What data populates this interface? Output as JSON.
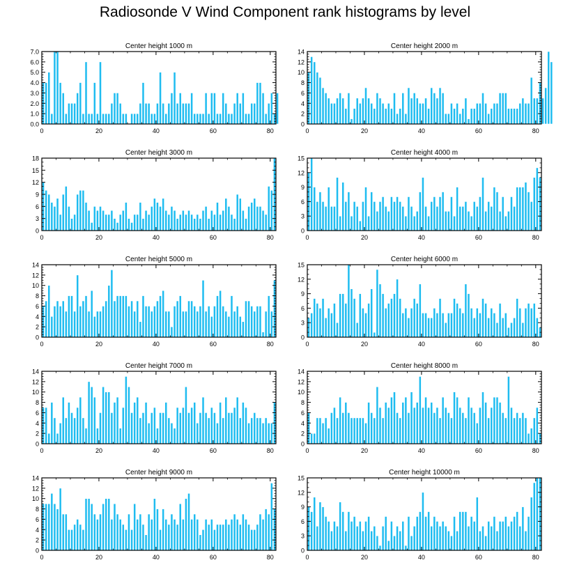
{
  "title": "Radiosonde V Wind Component rank histograms by level",
  "colors": {
    "bar": "#1ebcf0",
    "bar_edge": "#ffffff",
    "axis": "#000000"
  },
  "chart_data": [
    {
      "type": "bar",
      "title": "Center height 1000 m",
      "xlabel": "",
      "ylabel": "",
      "xlim": [
        0,
        82
      ],
      "ylim": [
        0,
        7
      ],
      "xticks": [
        0,
        20,
        40,
        60,
        80
      ],
      "yticks": [
        0.0,
        1.0,
        2.0,
        3.0,
        4.0,
        5.0,
        6.0,
        7.0
      ],
      "ytick_labels": [
        "0.0",
        "1.0",
        "2.0",
        "3.0",
        "4.0",
        "5.0",
        "6.0",
        "7.0"
      ],
      "values": [
        4,
        4,
        5,
        1,
        7,
        7,
        4,
        3,
        1,
        2,
        2,
        2,
        3,
        4,
        1,
        6,
        1,
        1,
        4,
        1,
        6,
        1,
        1,
        1,
        2,
        3,
        3,
        2,
        1,
        1,
        0,
        1,
        1,
        1,
        2,
        4,
        2,
        2,
        1,
        1,
        2,
        5,
        2,
        1,
        2,
        3,
        5,
        2,
        3,
        2,
        2,
        2,
        3,
        1,
        1,
        1,
        1,
        3,
        1,
        3,
        3,
        1,
        1,
        3,
        2,
        1,
        1,
        2,
        3,
        2,
        3,
        1,
        1,
        2,
        2,
        4,
        4,
        3,
        1,
        2,
        3,
        1,
        3
      ]
    },
    {
      "type": "bar",
      "title": "Center height 2000 m",
      "xlabel": "",
      "ylabel": "",
      "xlim": [
        0,
        82
      ],
      "ylim": [
        0,
        14
      ],
      "xticks": [
        0,
        20,
        40,
        60,
        80
      ],
      "yticks": [
        0,
        2,
        4,
        6,
        8,
        10,
        12,
        14
      ],
      "ytick_labels": [
        "0",
        "2",
        "4",
        "6",
        "8",
        "10",
        "12",
        "14"
      ],
      "values": [
        10,
        13,
        12,
        10,
        9,
        7,
        6,
        5,
        4,
        4,
        5,
        6,
        5,
        3,
        6,
        1,
        3,
        5,
        4,
        5,
        7,
        5,
        4,
        3,
        6,
        5,
        4,
        3,
        4,
        3,
        6,
        2,
        3,
        6,
        2,
        7,
        5,
        6,
        5,
        4,
        4,
        5,
        3,
        7,
        6,
        5,
        7,
        6,
        2,
        2,
        4,
        3,
        4,
        2,
        3,
        5,
        1,
        3,
        3,
        4,
        4,
        6,
        4,
        2,
        3,
        4,
        4,
        6,
        6,
        6,
        3,
        3,
        3,
        3,
        4,
        5,
        4,
        4,
        9,
        5,
        5,
        8,
        5,
        7,
        14,
        12
      ]
    },
    {
      "type": "bar",
      "title": "Center height 3000 m",
      "xlabel": "",
      "ylabel": "",
      "xlim": [
        0,
        82
      ],
      "ylim": [
        0,
        18
      ],
      "xticks": [
        0,
        20,
        40,
        60,
        80
      ],
      "yticks": [
        0,
        3,
        6,
        9,
        12,
        15,
        18
      ],
      "ytick_labels": [
        "0",
        "3",
        "6",
        "9",
        "12",
        "15",
        "18"
      ],
      "values": [
        12,
        10,
        9,
        7,
        6,
        8,
        4,
        9,
        11,
        6,
        3,
        4,
        9,
        10,
        10,
        7,
        5,
        2,
        6,
        5,
        6,
        5,
        4,
        4,
        5,
        3,
        2,
        4,
        5,
        7,
        3,
        2,
        4,
        4,
        7,
        3,
        5,
        4,
        6,
        8,
        7,
        6,
        8,
        5,
        4,
        6,
        5,
        3,
        4,
        5,
        4,
        5,
        4,
        3,
        4,
        3,
        5,
        6,
        3,
        5,
        4,
        7,
        4,
        5,
        8,
        6,
        4,
        3,
        9,
        8,
        5,
        3,
        6,
        7,
        8,
        6,
        6,
        5,
        4,
        11,
        10,
        18
      ]
    },
    {
      "type": "bar",
      "title": "Center height 4000 m",
      "xlabel": "",
      "ylabel": "",
      "xlim": [
        0,
        82
      ],
      "ylim": [
        0,
        15
      ],
      "xticks": [
        0,
        20,
        40,
        60,
        80
      ],
      "yticks": [
        0,
        3,
        6,
        9,
        12,
        15
      ],
      "ytick_labels": [
        "0",
        "3",
        "6",
        "9",
        "12",
        "15"
      ],
      "values": [
        12,
        15,
        9,
        6,
        8,
        6,
        5,
        9,
        5,
        5,
        11,
        3,
        10,
        6,
        8,
        3,
        6,
        5,
        2,
        6,
        9,
        3,
        8,
        6,
        4,
        6,
        7,
        5,
        4,
        7,
        6,
        7,
        6,
        5,
        3,
        7,
        5,
        3,
        4,
        8,
        11,
        5,
        3,
        6,
        7,
        5,
        7,
        8,
        4,
        4,
        7,
        3,
        9,
        5,
        5,
        6,
        4,
        3,
        6,
        5,
        7,
        11,
        4,
        6,
        5,
        9,
        8,
        4,
        7,
        3,
        4,
        7,
        5,
        9,
        9,
        9,
        10,
        8,
        6,
        11,
        13,
        11
      ]
    },
    {
      "type": "bar",
      "title": "Center height 5000 m",
      "xlabel": "",
      "ylabel": "",
      "xlim": [
        0,
        82
      ],
      "ylim": [
        0,
        14
      ],
      "xticks": [
        0,
        20,
        40,
        60,
        80
      ],
      "yticks": [
        0,
        2,
        4,
        6,
        8,
        10,
        12,
        14
      ],
      "ytick_labels": [
        "0",
        "2",
        "4",
        "6",
        "8",
        "10",
        "12",
        "14"
      ],
      "values": [
        6,
        7,
        10,
        4,
        6,
        7,
        6,
        7,
        5,
        8,
        8,
        5,
        12,
        6,
        7,
        8,
        5,
        9,
        4,
        5,
        5,
        6,
        7,
        10,
        13,
        7,
        8,
        8,
        8,
        8,
        6,
        7,
        5,
        7,
        3,
        8,
        6,
        6,
        5,
        6,
        7,
        8,
        9,
        5,
        5,
        2,
        6,
        7,
        8,
        5,
        5,
        7,
        7,
        6,
        5,
        6,
        11,
        5,
        6,
        4,
        6,
        8,
        9,
        6,
        5,
        4,
        8,
        5,
        6,
        4,
        3,
        7,
        7,
        6,
        5,
        6,
        6,
        1,
        5,
        8,
        5,
        11
      ]
    },
    {
      "type": "bar",
      "title": "Center height 6000 m",
      "xlabel": "",
      "ylabel": "",
      "xlim": [
        0,
        82
      ],
      "ylim": [
        0,
        15
      ],
      "xticks": [
        0,
        20,
        40,
        60,
        80
      ],
      "yticks": [
        0,
        3,
        6,
        9,
        12,
        15
      ],
      "ytick_labels": [
        "0",
        "3",
        "6",
        "9",
        "12",
        "15"
      ],
      "values": [
        4,
        5,
        8,
        7,
        6,
        8,
        4,
        6,
        5,
        7,
        3,
        9,
        9,
        7,
        15,
        10,
        8,
        3,
        9,
        6,
        5,
        7,
        10,
        1,
        14,
        11,
        9,
        6,
        7,
        8,
        9,
        12,
        8,
        5,
        6,
        4,
        6,
        8,
        7,
        11,
        5,
        5,
        4,
        4,
        6,
        5,
        8,
        5,
        3,
        5,
        5,
        8,
        7,
        6,
        5,
        11,
        9,
        6,
        4,
        6,
        5,
        8,
        7,
        4,
        6,
        5,
        3,
        7,
        4,
        5,
        2,
        3,
        4,
        8,
        6,
        3,
        6,
        7,
        6,
        7,
        4,
        2
      ]
    },
    {
      "type": "bar",
      "title": "Center height 7000 m",
      "xlabel": "",
      "ylabel": "",
      "xlim": [
        0,
        82
      ],
      "ylim": [
        0,
        14
      ],
      "xticks": [
        0,
        20,
        40,
        60,
        80
      ],
      "yticks": [
        0,
        2,
        4,
        6,
        8,
        10,
        12,
        14
      ],
      "ytick_labels": [
        "0",
        "2",
        "4",
        "6",
        "8",
        "10",
        "12",
        "14"
      ],
      "values": [
        7,
        7,
        2,
        8,
        5,
        2,
        4,
        9,
        5,
        8,
        6,
        5,
        7,
        9,
        5,
        3,
        12,
        11,
        9,
        3,
        6,
        11,
        10,
        10,
        6,
        8,
        9,
        3,
        7,
        13,
        11,
        6,
        8,
        9,
        5,
        6,
        8,
        4,
        6,
        7,
        3,
        6,
        6,
        8,
        5,
        4,
        3,
        7,
        6,
        7,
        11,
        6,
        7,
        8,
        4,
        6,
        9,
        6,
        5,
        7,
        6,
        4,
        8,
        5,
        9,
        6,
        6,
        7,
        9,
        5,
        8,
        7,
        4,
        5,
        6,
        5,
        5,
        4,
        5,
        4,
        4,
        8
      ]
    },
    {
      "type": "bar",
      "title": "Center height 8000 m",
      "xlabel": "",
      "ylabel": "",
      "xlim": [
        0,
        82
      ],
      "ylim": [
        0,
        14
      ],
      "xticks": [
        0,
        20,
        40,
        60,
        80
      ],
      "yticks": [
        0,
        2,
        4,
        6,
        8,
        10,
        12,
        14
      ],
      "ytick_labels": [
        "0",
        "2",
        "4",
        "6",
        "8",
        "10",
        "12",
        "14"
      ],
      "values": [
        6,
        2,
        2,
        5,
        5,
        4,
        5,
        3,
        6,
        7,
        5,
        9,
        6,
        8,
        6,
        5,
        5,
        5,
        5,
        5,
        4,
        8,
        6,
        5,
        11,
        7,
        5,
        8,
        7,
        9,
        10,
        6,
        5,
        8,
        9,
        6,
        10,
        7,
        8,
        13,
        7,
        9,
        7,
        8,
        6,
        7,
        5,
        9,
        7,
        6,
        5,
        10,
        9,
        7,
        6,
        5,
        9,
        7,
        6,
        4,
        7,
        10,
        8,
        5,
        7,
        9,
        9,
        8,
        6,
        5,
        13,
        7,
        5,
        6,
        5,
        6,
        5,
        2,
        3,
        5,
        7,
        2
      ]
    },
    {
      "type": "bar",
      "title": "Center height 9000 m",
      "xlabel": "",
      "ylabel": "",
      "xlim": [
        0,
        82
      ],
      "ylim": [
        0,
        14
      ],
      "xticks": [
        0,
        20,
        40,
        60,
        80
      ],
      "yticks": [
        0,
        2,
        4,
        6,
        8,
        10,
        12,
        14
      ],
      "ytick_labels": [
        "0",
        "2",
        "4",
        "6",
        "8",
        "10",
        "12",
        "14"
      ],
      "values": [
        9,
        9,
        9,
        11,
        9,
        8,
        12,
        7,
        7,
        4,
        4,
        5,
        6,
        5,
        4,
        10,
        10,
        9,
        7,
        6,
        7,
        9,
        10,
        10,
        6,
        9,
        7,
        6,
        5,
        4,
        7,
        4,
        9,
        6,
        7,
        5,
        3,
        7,
        6,
        10,
        8,
        4,
        8,
        6,
        5,
        7,
        6,
        5,
        9,
        6,
        10,
        11,
        6,
        7,
        6,
        3,
        4,
        6,
        5,
        6,
        4,
        5,
        5,
        5,
        6,
        5,
        6,
        7,
        6,
        5,
        7,
        6,
        5,
        4,
        4,
        5,
        7,
        6,
        8,
        7,
        13,
        8
      ]
    },
    {
      "type": "bar",
      "title": "Center height 10000 m",
      "xlabel": "",
      "ylabel": "",
      "xlim": [
        0,
        82
      ],
      "ylim": [
        0,
        15
      ],
      "xticks": [
        0,
        20,
        40,
        60,
        80
      ],
      "yticks": [
        0,
        3,
        6,
        9,
        12,
        15
      ],
      "ytick_labels": [
        "0",
        "3",
        "6",
        "9",
        "12",
        "15"
      ],
      "values": [
        9,
        8,
        11,
        5,
        10,
        9,
        7,
        6,
        4,
        6,
        5,
        10,
        8,
        4,
        8,
        6,
        7,
        5,
        6,
        4,
        6,
        7,
        4,
        5,
        3,
        1,
        5,
        7,
        2,
        6,
        3,
        5,
        4,
        6,
        1,
        7,
        3,
        5,
        7,
        8,
        12,
        7,
        8,
        5,
        7,
        6,
        5,
        6,
        5,
        4,
        3,
        7,
        4,
        8,
        8,
        8,
        5,
        7,
        6,
        11,
        4,
        5,
        3,
        6,
        5,
        7,
        4,
        6,
        6,
        7,
        5,
        6,
        7,
        8,
        5,
        9,
        4,
        7,
        11,
        14,
        15,
        15
      ]
    }
  ]
}
